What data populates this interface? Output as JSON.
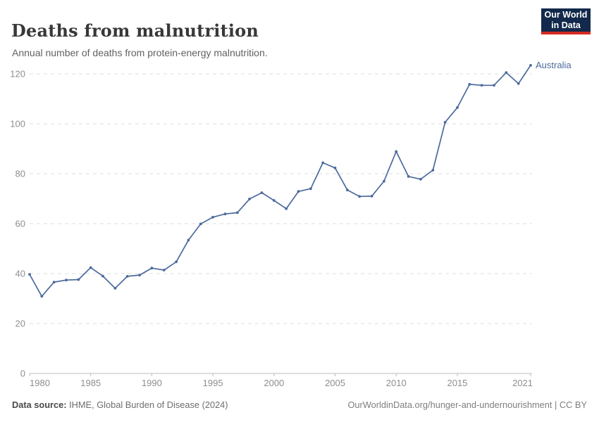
{
  "header": {
    "title": "Deaths from malnutrition",
    "subtitle": "Annual number of deaths from protein-energy malnutrition.",
    "logo": {
      "line1": "Our World",
      "line2": "in Data",
      "bg_color": "#12294B",
      "accent_color": "#D42B21"
    }
  },
  "chart_data": {
    "type": "line",
    "title": "Deaths from malnutrition",
    "xlabel": "",
    "ylabel": "",
    "xlim": [
      1980,
      2021
    ],
    "ylim": [
      0,
      120
    ],
    "x_ticks": [
      1980,
      1985,
      1990,
      1995,
      2000,
      2005,
      2010,
      2015,
      2021
    ],
    "y_ticks": [
      0,
      20,
      40,
      60,
      80,
      100,
      120
    ],
    "grid": "horizontal-dashed",
    "legend_position": "end-of-line-label",
    "x": [
      1980,
      1981,
      1982,
      1983,
      1984,
      1985,
      1986,
      1987,
      1988,
      1989,
      1990,
      1991,
      1992,
      1993,
      1994,
      1995,
      1996,
      1997,
      1998,
      1999,
      2000,
      2001,
      2002,
      2003,
      2004,
      2005,
      2006,
      2007,
      2008,
      2009,
      2010,
      2011,
      2012,
      2013,
      2014,
      2015,
      2016,
      2017,
      2018,
      2019,
      2020,
      2021
    ],
    "series": [
      {
        "name": "Australia",
        "color": "#4C6A9C",
        "values": [
          39.7,
          30.9,
          36.6,
          37.4,
          37.6,
          42.4,
          39.0,
          34.1,
          38.9,
          39.4,
          42.2,
          41.4,
          44.7,
          53.4,
          59.9,
          62.6,
          63.9,
          64.4,
          69.9,
          72.4,
          69.3,
          66.0,
          72.9,
          74.0,
          84.4,
          82.3,
          73.5,
          70.9,
          71.0,
          77.0,
          88.9,
          78.9,
          77.8,
          81.4,
          100.6,
          106.5,
          115.8,
          115.4,
          115.4,
          120.5,
          116.1,
          123.4
        ]
      }
    ]
  },
  "footer": {
    "source_label": "Data source:",
    "source_value": " IHME, Global Burden of Disease (2024)",
    "credit": "OurWorldinData.org/hunger-and-undernourishment | CC BY"
  }
}
